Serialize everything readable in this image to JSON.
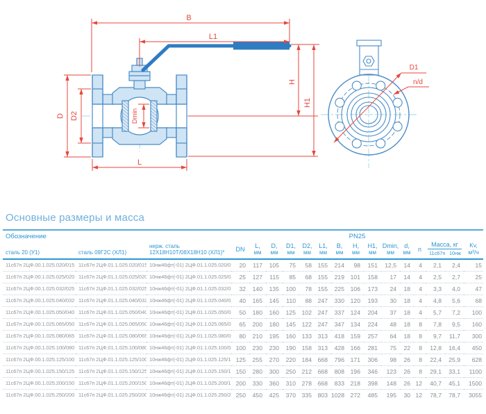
{
  "drawing": {
    "dim_labels": {
      "B": "B",
      "L1": "L1",
      "H": "H",
      "H1": "H1",
      "D": "D",
      "D2": "D2",
      "Dmin": "Dmin",
      "L": "L",
      "D1": "D1",
      "n_d": "n/d"
    },
    "colors": {
      "line_blue": "#4a8cc7",
      "fill_blue": "#cfe4f4",
      "handle_blue": "#2e7cc2",
      "dim_red": "#e7463d",
      "centerline": "#9fd4e8"
    }
  },
  "table": {
    "title": "Основные размеры и масса",
    "group_header_left": "Обозначение",
    "group_header_right": "PN25",
    "designation_headers": [
      "сталь 20 (У1)",
      "сталь 09Г2С (ХЛ1)",
      "нерж. сталь\n12Х18Н10Т/08Х18Н10 (ХЛ1)*"
    ],
    "dn_label": "DN",
    "dim_columns": [
      {
        "label": "L,",
        "unit": "мм"
      },
      {
        "label": "D,",
        "unit": "мм"
      },
      {
        "label": "D1,",
        "unit": "мм"
      },
      {
        "label": "D2,",
        "unit": "мм"
      },
      {
        "label": "L1,",
        "unit": "мм"
      },
      {
        "label": "B,",
        "unit": "мм"
      },
      {
        "label": "H,",
        "unit": "мм"
      },
      {
        "label": "H1,",
        "unit": "мм"
      },
      {
        "label": "Dmin,",
        "unit": "мм"
      },
      {
        "label": "d,",
        "unit": "мм"
      }
    ],
    "n_label": "n",
    "mass_group": {
      "label": "Масса, кг",
      "subs": [
        "11с67п",
        "10нж"
      ]
    },
    "kv_label": {
      "line1": "Kv,",
      "line2": "м³/ч"
    },
    "rows": [
      {
        "designations": [
          "11с67п 2ЦФ.00.1.025.020/015",
          "11с67п 2ЦФ.01.1.025.020/015",
          "10нж46фт(-01) 2ЦФ.01.1.025.020/015"
        ],
        "values": [
          "20",
          "117",
          "105",
          "75",
          "58",
          "155",
          "214",
          "98",
          "151",
          "12,5",
          "14",
          "4",
          "2,1",
          "2,4",
          "15"
        ]
      },
      {
        "designations": [
          "11с67п 2ЦФ.00.1.025.025/020",
          "11с67п 2ЦФ.01.1.025.025/020",
          "10нж46фт(-01) 2ЦФ.01.1.025.025/020"
        ],
        "values": [
          "25",
          "127",
          "115",
          "85",
          "68",
          "155",
          "219",
          "101",
          "158",
          "17",
          "14",
          "4",
          "2,5",
          "2,7",
          "25"
        ]
      },
      {
        "designations": [
          "11с67п 2ЦФ.00.1.025.032/025",
          "11с67п 2ЦФ.01.1.025.032/025",
          "10нж46фт(-01) 2ЦФ.01.1.025.032/025"
        ],
        "values": [
          "32",
          "140",
          "135",
          "100",
          "78",
          "155",
          "225",
          "106",
          "173",
          "24",
          "18",
          "4",
          "3,3",
          "4,0",
          "47"
        ]
      },
      {
        "designations": [
          "11с67п 2ЦФ.00.1.025.040/032",
          "11с67п 2ЦФ.01.1.025.040/032",
          "10нж46фт(-01) 2ЦФ.01.1.025.040/032"
        ],
        "values": [
          "40",
          "165",
          "145",
          "110",
          "88",
          "247",
          "330",
          "120",
          "193",
          "30",
          "18",
          "4",
          "4,8",
          "5,6",
          "68"
        ]
      },
      {
        "designations": [
          "11с67п 2ЦФ.00.1.025.050/040",
          "11с67п 2ЦФ.01.1.025.050/040",
          "10нж46фт(-01) 2ЦФ.01.1.025.050/040"
        ],
        "values": [
          "50",
          "180",
          "160",
          "125",
          "102",
          "247",
          "337",
          "124",
          "204",
          "37",
          "18",
          "4",
          "5,7",
          "7,2",
          "100"
        ]
      },
      {
        "designations": [
          "11с67п 2ЦФ.00.1.025.065/050",
          "11с67п 2ЦФ.01.1.025.065/050",
          "10нж46фт(-01) 2ЦФ.01.1.025.065/050"
        ],
        "values": [
          "65",
          "200",
          "180",
          "145",
          "122",
          "247",
          "347",
          "134",
          "224",
          "48",
          "18",
          "8",
          "7,8",
          "9,5",
          "160"
        ]
      },
      {
        "designations": [
          "11с67п 2ЦФ.00.1.025.080/065",
          "11с67п 2ЦФ.01.1.025.080/065",
          "10нж46фт(-01) 2ЦФ.01.1.025.080/065"
        ],
        "values": [
          "80",
          "210",
          "195",
          "160",
          "133",
          "313",
          "418",
          "159",
          "257",
          "64",
          "18",
          "8",
          "9,7",
          "11,7",
          "300"
        ]
      },
      {
        "designations": [
          "11с67п 2ЦФ.00.1.025.100/080",
          "11с67п 2ЦФ.01.1.025.100/080",
          "10нж46фт(-01) 2ЦФ.01.1.025.100/080"
        ],
        "values": [
          "100",
          "230",
          "230",
          "190",
          "158",
          "313",
          "428",
          "166",
          "281",
          "75",
          "22",
          "8",
          "12,8",
          "16,4",
          "450"
        ]
      },
      {
        "designations": [
          "11с67п 2ЦФ.00.1.025.125/100",
          "11с67п 2ЦФ.01.1.025.125/100",
          "10нж46фт(-01) 2ЦФ.01.1.025.125/100"
        ],
        "values": [
          "125",
          "255",
          "270",
          "220",
          "184",
          "668",
          "796",
          "171",
          "306",
          "98",
          "26",
          "8",
          "22,4",
          "25,9",
          "628"
        ]
      },
      {
        "designations": [
          "11с67п 2ЦФ.00.1.025.150/125",
          "11с67п 2ЦФ.01.1.025.150/125",
          "10нж46фт(-01) 2ЦФ.01.1.025.150/125"
        ],
        "values": [
          "150",
          "280",
          "300",
          "250",
          "212",
          "668",
          "808",
          "196",
          "346",
          "123",
          "26",
          "8",
          "29,1",
          "33,1",
          "1100"
        ]
      },
      {
        "designations": [
          "11с67п 2ЦФ.00.1.025.200/150",
          "11с67п 2ЦФ.01.1.025.200/150",
          "10нж46фт(-01) 2ЦФ.01.1.025.200/150"
        ],
        "values": [
          "200",
          "330",
          "360",
          "310",
          "278",
          "668",
          "833",
          "218",
          "398",
          "148",
          "26",
          "12",
          "40,7",
          "45,1",
          "1500"
        ]
      },
      {
        "designations": [
          "11с67п 2ЦФ.00.1.025.250/200",
          "11с67п 2ЦФ.01.1.025.250/200",
          "10нж46фт(-01) 2ЦФ.01.1.025.250/200"
        ],
        "values": [
          "250",
          "450",
          "425",
          "370",
          "335",
          "803",
          "1028",
          "272",
          "485",
          "195",
          "30",
          "12",
          "78,7",
          "78,7",
          "3055"
        ]
      }
    ]
  }
}
